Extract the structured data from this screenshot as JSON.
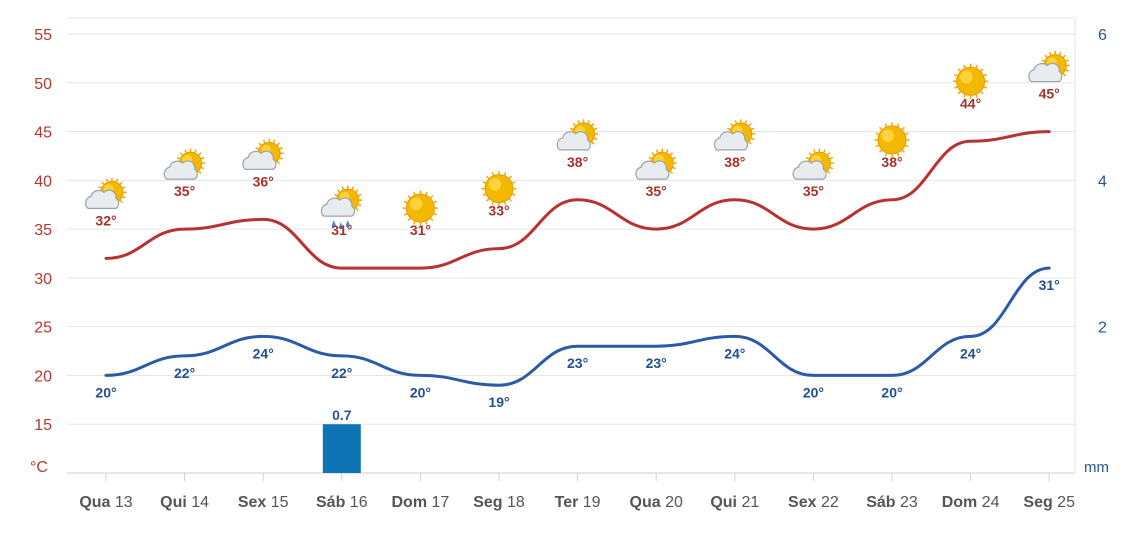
{
  "chart_data": {
    "type": "line",
    "categories": [
      {
        "day": "Qua",
        "num": "13"
      },
      {
        "day": "Qui",
        "num": "14"
      },
      {
        "day": "Sex",
        "num": "15"
      },
      {
        "day": "Sáb",
        "num": "16"
      },
      {
        "day": "Dom",
        "num": "17"
      },
      {
        "day": "Seg",
        "num": "18"
      },
      {
        "day": "Ter",
        "num": "19"
      },
      {
        "day": "Qua",
        "num": "20"
      },
      {
        "day": "Qui",
        "num": "21"
      },
      {
        "day": "Sex",
        "num": "22"
      },
      {
        "day": "Sáb",
        "num": "23"
      },
      {
        "day": "Dom",
        "num": "24"
      },
      {
        "day": "Seg",
        "num": "25"
      }
    ],
    "series": [
      {
        "key": "max",
        "color": "#b83232",
        "values": [
          32,
          35,
          36,
          31,
          31,
          33,
          38,
          35,
          38,
          35,
          38,
          44,
          45
        ],
        "labels": [
          "32°",
          "35°",
          "36°",
          "31°",
          "31°",
          "33°",
          "38°",
          "35°",
          "38°",
          "35°",
          "38°",
          "44°",
          "45°"
        ]
      },
      {
        "key": "min",
        "color": "#2a5aa8",
        "values": [
          20,
          22,
          24,
          22,
          20,
          19,
          23,
          23,
          24,
          20,
          20,
          24,
          31
        ],
        "labels": [
          "20°",
          "22°",
          "24°",
          "22°",
          "20°",
          "19°",
          "23°",
          "23°",
          "24°",
          "20°",
          "20°",
          "24°",
          "31°"
        ]
      },
      {
        "key": "rain",
        "type": "bar",
        "color": "#0f74b3",
        "axis": "right",
        "values": [
          null,
          null,
          null,
          0.7,
          null,
          null,
          null,
          null,
          null,
          null,
          null,
          null,
          null
        ],
        "labels": [
          null,
          null,
          null,
          "0.7",
          null,
          null,
          null,
          null,
          null,
          null,
          null,
          null,
          null
        ]
      }
    ],
    "icons": [
      "sun-cloud-icon",
      "sun-cloud-icon",
      "sun-cloud-icon",
      "sun-cloud-rain-icon",
      "sun-icon",
      "sun-icon",
      "sun-cloud-icon",
      "sun-cloud-icon",
      "sun-cloud-icon",
      "sun-cloud-icon",
      "sun-icon",
      "sun-icon",
      "sun-cloud-icon"
    ],
    "y_left": {
      "unit": "°C",
      "min": 10,
      "max": 55,
      "ticks": [
        "55",
        "50",
        "45",
        "40",
        "35",
        "30",
        "25",
        "20",
        "15"
      ],
      "tick_values": [
        55,
        50,
        45,
        40,
        35,
        30,
        25,
        20,
        15
      ]
    },
    "y_right": {
      "unit": "mm",
      "min": 0,
      "max": 6,
      "ticks": [
        "6",
        "4",
        "2"
      ],
      "tick_values": [
        6,
        4,
        2
      ]
    },
    "grid": true,
    "colors": {
      "max": "#b83232",
      "min": "#2a5aa8",
      "rain": "#0f74b3",
      "grid": "#e6e6e6",
      "sun": "#f5b800",
      "cloud": "#e9ecef",
      "drop": "#3b8fe0"
    }
  }
}
